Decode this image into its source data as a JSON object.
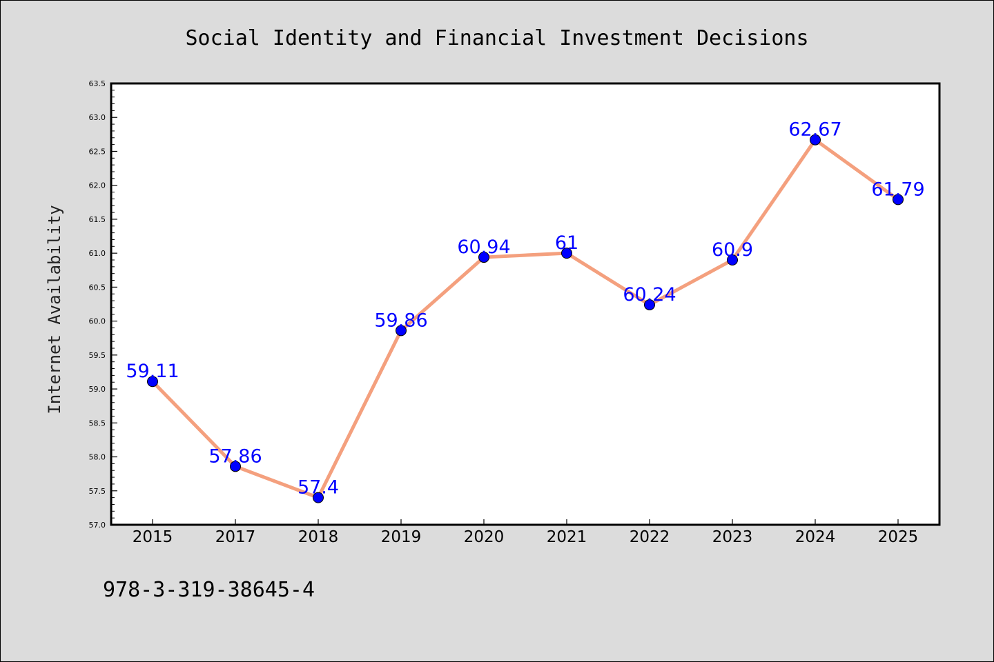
{
  "chart_data": {
    "type": "line",
    "title": "Social Identity and Financial Investment Decisions",
    "xlabel": "",
    "ylabel": "Internet Availability",
    "categories": [
      "2015",
      "2017",
      "2018",
      "2019",
      "2020",
      "2021",
      "2022",
      "2023",
      "2024",
      "2025"
    ],
    "series": [
      {
        "values": [
          59.11,
          57.86,
          57.4,
          59.86,
          60.94,
          61,
          60.24,
          60.9,
          62.67,
          61.79
        ],
        "data_labels": [
          "59.11",
          "57.86",
          "57.4",
          "59.86",
          "60.94",
          "61",
          "60.24",
          "60.9",
          "62.67",
          "61.79"
        ],
        "line_color": "#f4a07e",
        "marker_color": "#0000ff"
      }
    ],
    "ylim": [
      57.0,
      63.5
    ],
    "yticks": [
      "57.0",
      "57.5",
      "58.0",
      "58.5",
      "59.0",
      "59.5",
      "60.0",
      "60.5",
      "61.0",
      "61.5",
      "62.0",
      "62.5",
      "63.0",
      "63.5"
    ],
    "grid": false,
    "legend": "none"
  },
  "footer": {
    "isbn": "978-3-319-38645-4"
  },
  "colors": {
    "background": "#dcdcdc",
    "plot_background": "#ffffff",
    "line": "#f4a07e",
    "marker": "#0000ff",
    "data_label": "#0000ff"
  }
}
